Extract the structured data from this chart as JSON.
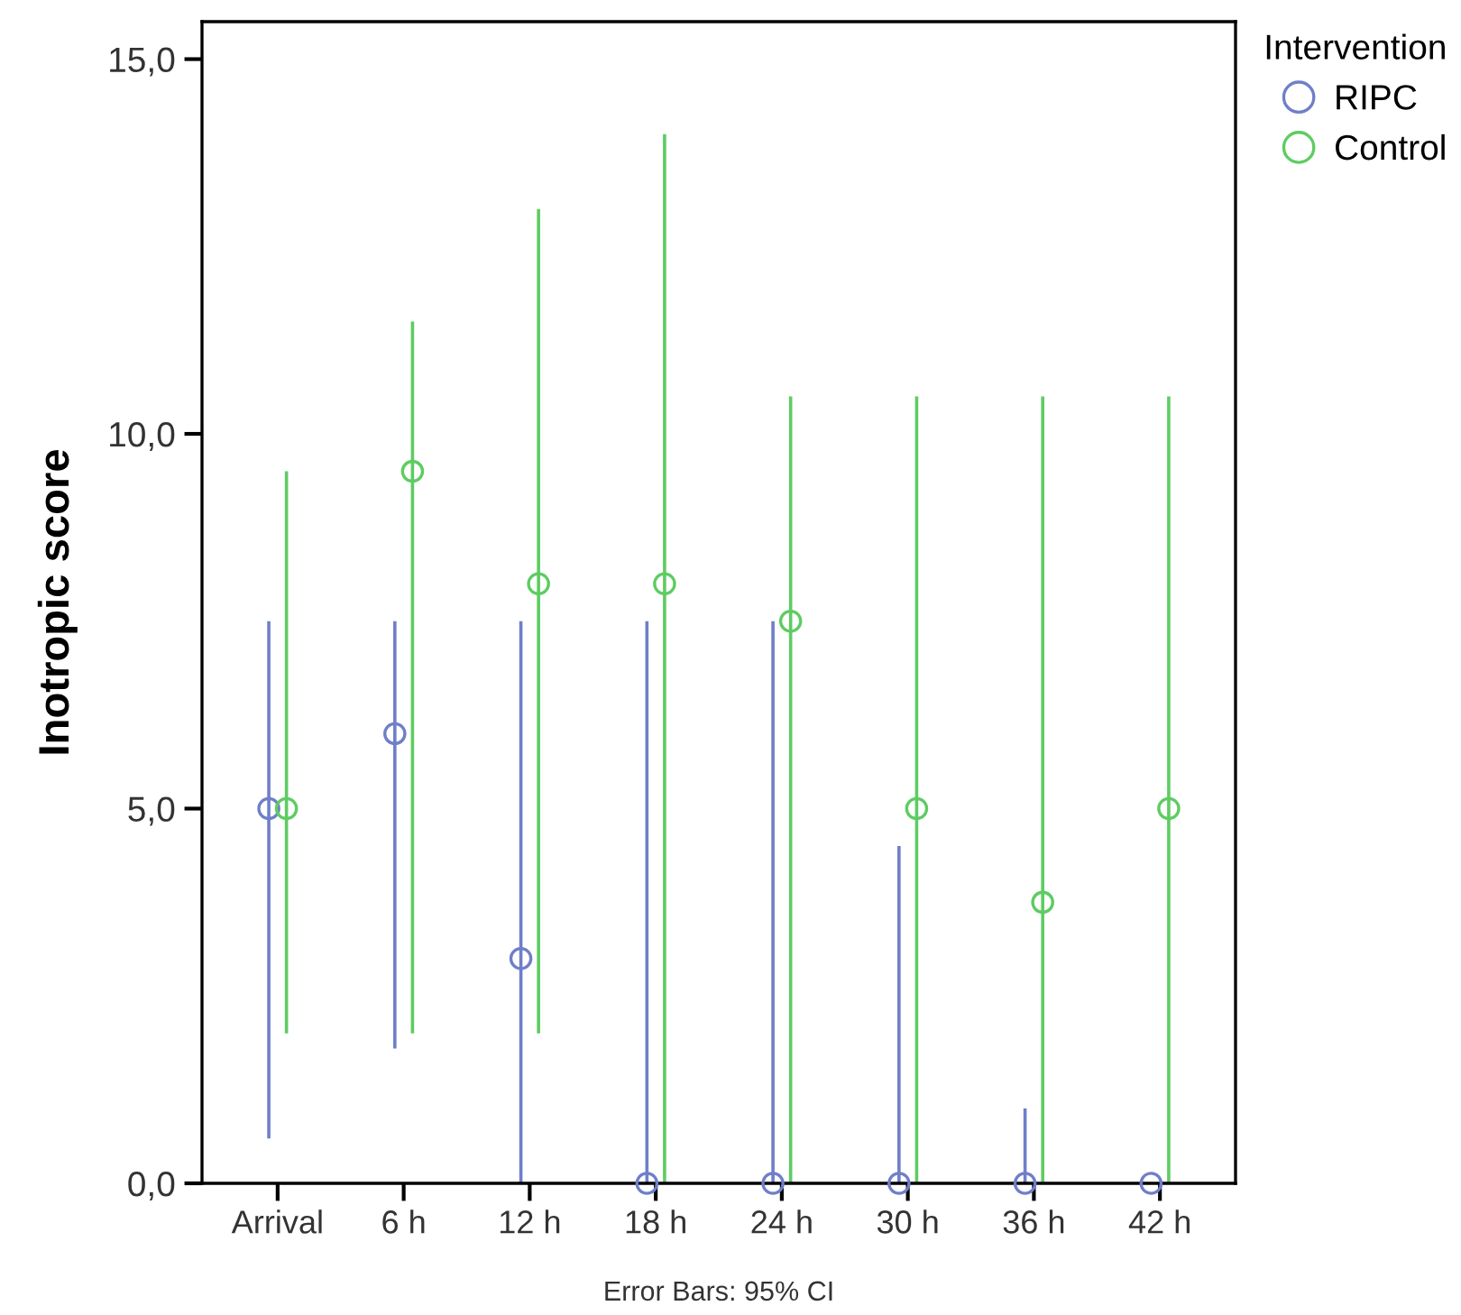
{
  "chart_data": {
    "type": "scatter",
    "ylabel": "Inotropic score",
    "legend_title": "Intervention",
    "legend": "top right",
    "marker": "circle",
    "grid": false,
    "categories": [
      "Arrival",
      "6 h",
      "12 h",
      "18 h",
      "24 h",
      "30 h",
      "36 h",
      "42 h"
    ],
    "ylim": [
      0,
      15.5
    ],
    "yticks": [
      {
        "value": 0,
        "label": "0,0"
      },
      {
        "value": 5,
        "label": "5,0"
      },
      {
        "value": 10,
        "label": "10,0"
      },
      {
        "value": 15,
        "label": "15,0"
      }
    ],
    "series": [
      {
        "name": "RIPC",
        "color": "#6f7fc8",
        "values": [
          5.0,
          6.0,
          3.0,
          0,
          0,
          0,
          0,
          0
        ],
        "errors": [
          [
            0.6,
            7.5
          ],
          [
            1.8,
            7.5
          ],
          [
            0,
            7.5
          ],
          [
            0,
            7.5
          ],
          [
            0,
            7.5
          ],
          [
            0,
            4.5
          ],
          [
            0,
            1.0
          ],
          null
        ]
      },
      {
        "name": "Control",
        "color": "#5ecc62",
        "values": [
          5.0,
          9.5,
          8.0,
          8.0,
          7.5,
          5.0,
          3.75,
          5.0
        ],
        "errors": [
          [
            2.0,
            9.5
          ],
          [
            2.0,
            11.5
          ],
          [
            2.0,
            13.0
          ],
          [
            0,
            14.0
          ],
          [
            0,
            10.5
          ],
          [
            0,
            10.5
          ],
          [
            0,
            10.5
          ],
          [
            0,
            10.5
          ]
        ]
      }
    ],
    "annotations": [
      "Error Bars: 95% CI"
    ]
  }
}
